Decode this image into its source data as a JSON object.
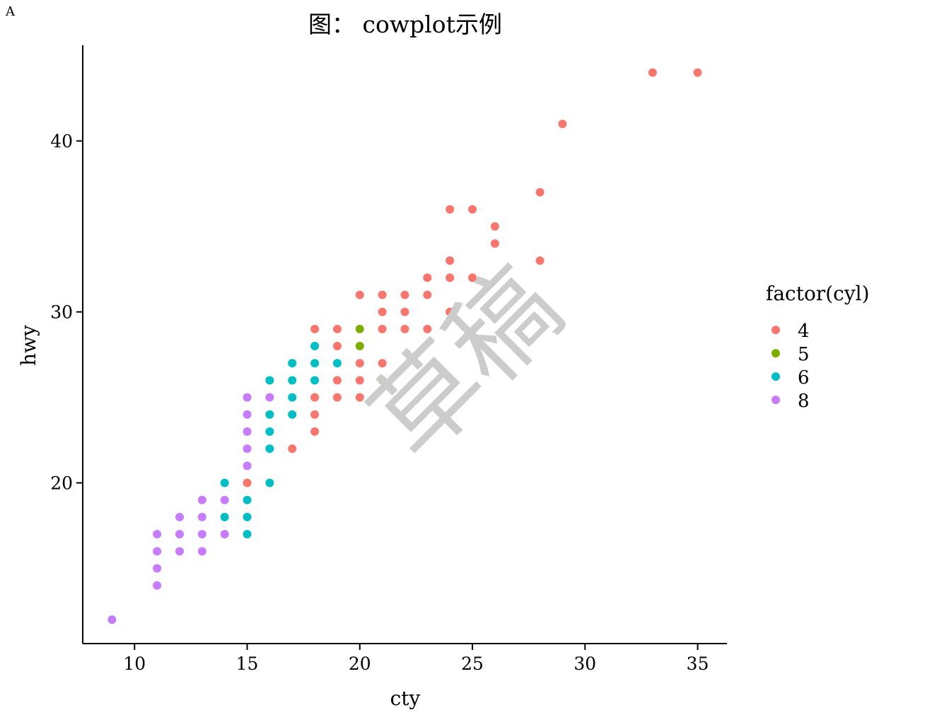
{
  "panel_label": "A",
  "watermark": "草稿",
  "watermark_color": "#cccccc",
  "chart_data": {
    "type": "scatter",
    "title": "图： cowplot示例",
    "xlabel": "cty",
    "ylabel": "hwy",
    "xlim": [
      7.7,
      36.3
    ],
    "ylim": [
      10.6,
      45.6
    ],
    "xticks": [
      10,
      15,
      20,
      25,
      30,
      35
    ],
    "yticks": [
      20,
      30,
      40
    ],
    "grid": false,
    "legend": {
      "title": "factor(cyl)",
      "placement": "right",
      "entries": [
        {
          "label": "4",
          "color": "#F8766D"
        },
        {
          "label": "5",
          "color": "#7CAE00"
        },
        {
          "label": "6",
          "color": "#00BFC4"
        },
        {
          "label": "8",
          "color": "#C77CFF"
        }
      ]
    },
    "series": [
      {
        "group": "4",
        "color": "#F8766D",
        "points": [
          [
            33,
            44
          ],
          [
            35,
            44
          ],
          [
            29,
            41
          ],
          [
            28,
            37
          ],
          [
            24,
            36
          ],
          [
            25,
            36
          ],
          [
            26,
            35
          ],
          [
            26,
            34
          ],
          [
            28,
            33
          ],
          [
            24,
            33
          ],
          [
            23,
            32
          ],
          [
            24,
            32
          ],
          [
            25,
            32
          ],
          [
            20,
            31
          ],
          [
            21,
            31
          ],
          [
            22,
            31
          ],
          [
            23,
            31
          ],
          [
            21,
            30
          ],
          [
            22,
            30
          ],
          [
            24,
            30
          ],
          [
            18,
            29
          ],
          [
            19,
            29
          ],
          [
            21,
            29
          ],
          [
            22,
            29
          ],
          [
            23,
            29
          ],
          [
            19,
            28
          ],
          [
            20,
            27
          ],
          [
            21,
            27
          ],
          [
            19,
            26
          ],
          [
            20,
            26
          ],
          [
            21,
            26
          ],
          [
            18,
            25
          ],
          [
            19,
            25
          ],
          [
            20,
            25
          ],
          [
            18,
            24
          ],
          [
            18,
            23
          ],
          [
            17,
            22
          ],
          [
            15,
            20
          ]
        ]
      },
      {
        "group": "5",
        "color": "#7CAE00",
        "points": [
          [
            20,
            29
          ],
          [
            20,
            28
          ]
        ]
      },
      {
        "group": "6",
        "color": "#00BFC4",
        "points": [
          [
            18,
            28
          ],
          [
            17,
            27
          ],
          [
            18,
            27
          ],
          [
            19,
            27
          ],
          [
            16,
            26
          ],
          [
            17,
            26
          ],
          [
            18,
            26
          ],
          [
            17,
            25
          ],
          [
            16,
            24
          ],
          [
            17,
            24
          ],
          [
            16,
            23
          ],
          [
            16,
            22
          ],
          [
            16,
            20
          ],
          [
            14,
            20
          ],
          [
            15,
            19
          ],
          [
            14,
            18
          ],
          [
            15,
            18
          ],
          [
            15,
            17
          ]
        ]
      },
      {
        "group": "8",
        "color": "#C77CFF",
        "points": [
          [
            15,
            25
          ],
          [
            16,
            25
          ],
          [
            15,
            24
          ],
          [
            15,
            23
          ],
          [
            15,
            22
          ],
          [
            15,
            21
          ],
          [
            13,
            19
          ],
          [
            14,
            19
          ],
          [
            12,
            18
          ],
          [
            13,
            18
          ],
          [
            11,
            17
          ],
          [
            12,
            17
          ],
          [
            13,
            17
          ],
          [
            14,
            17
          ],
          [
            11,
            16
          ],
          [
            12,
            16
          ],
          [
            13,
            16
          ],
          [
            11,
            15
          ],
          [
            11,
            14
          ],
          [
            9,
            12
          ]
        ]
      }
    ]
  }
}
